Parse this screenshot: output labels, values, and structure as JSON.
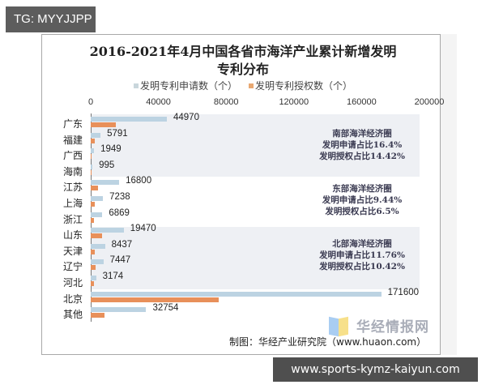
{
  "overlay": {
    "tag": "TG: MYYJJPP",
    "url": "www.sports-kymz-kaiyun.com"
  },
  "chart_data": {
    "type": "bar",
    "orientation": "horizontal",
    "title": "2016-2021年4月中国各省市海洋产业累计新增发明专利分布",
    "title_lines": [
      "2016-2021年4月中国各省市海洋产业累计新增发明",
      "专利分布"
    ],
    "xlabel": "",
    "ylabel": "",
    "xlim": [
      0,
      200000
    ],
    "x_ticks": [
      "0",
      "40000",
      "80000",
      "120000",
      "160000",
      "200000"
    ],
    "x_axis_position": "top",
    "grid": false,
    "legend_position": "top",
    "categories": [
      "广东",
      "福建",
      "广西",
      "海南",
      "江苏",
      "上海",
      "浙江",
      "山东",
      "天津",
      "辽宁",
      "河北",
      "北京",
      "其他"
    ],
    "series": [
      {
        "name": "发明专利申请数（个）",
        "color": "#bcd3e2",
        "values": [
          44970,
          5791,
          1949,
          995,
          16800,
          7238,
          6869,
          19470,
          8437,
          7447,
          3174,
          171600,
          32754
        ],
        "labels_shown": true
      },
      {
        "name": "发明专利授权数（个）",
        "color": "#e8905a",
        "values": [
          14800,
          2200,
          700,
          300,
          4500,
          2300,
          2100,
          6800,
          2600,
          3100,
          1700,
          75500,
          8200
        ],
        "labels_shown": false
      }
    ],
    "annotations": [
      {
        "group": "南部海洋经济圈",
        "lines": [
          "南部海洋经济圈",
          "发明申请占比16.4%",
          "发明授权占比14.42%"
        ],
        "rows": [
          "广东",
          "福建",
          "广西",
          "海南"
        ],
        "shaded": true
      },
      {
        "group": "东部海洋经济圈",
        "lines": [
          "东部海洋经济圈",
          "发明申请占比9.44%",
          "发明授权占比6.5%"
        ],
        "rows": [
          "江苏",
          "上海",
          "浙江"
        ],
        "shaded": false
      },
      {
        "group": "北部海洋经济圈",
        "lines": [
          "北部海洋经济圈",
          "发明申请占比11.76%",
          "发明授权占比10.42%"
        ],
        "rows": [
          "山东",
          "天津",
          "辽宁",
          "河北"
        ],
        "shaded": true
      }
    ],
    "source": "制图：华经产业研究院（www.huaon.com）",
    "watermark": "华经情报网"
  },
  "axis_ticks": [
    "0",
    "40000",
    "80000",
    "120000",
    "160000",
    "200000"
  ],
  "legend": {
    "app": "发明专利申请数（个）",
    "grant": "发明专利授权数（个）"
  }
}
